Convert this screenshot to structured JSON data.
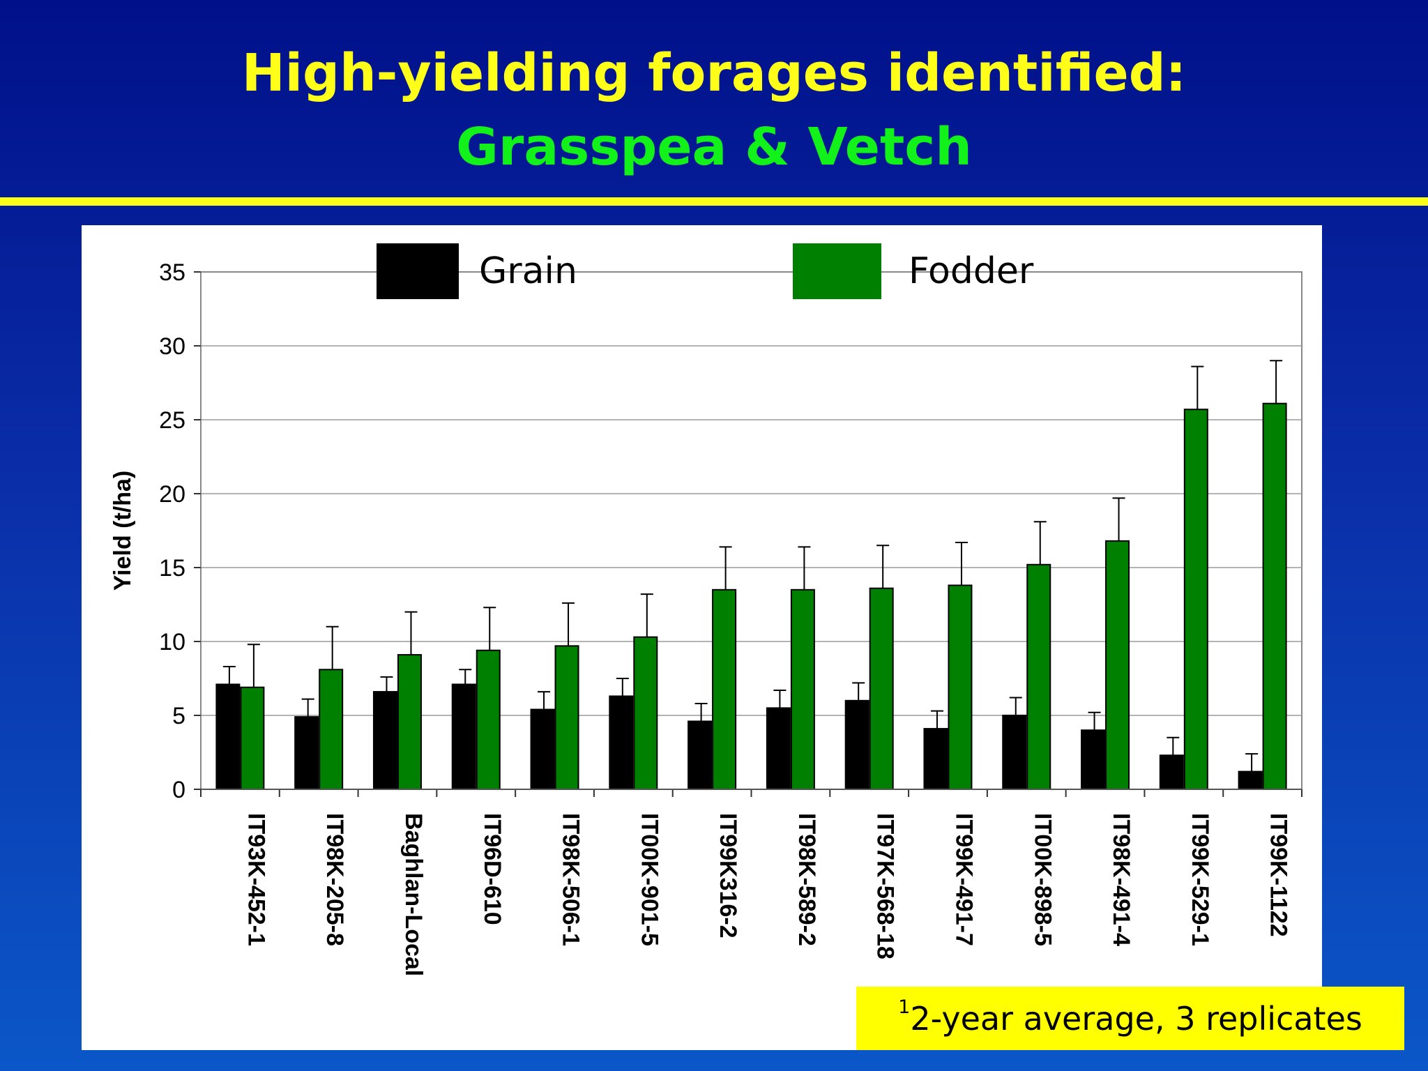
{
  "title": {
    "line1": "High-yielding forages identified:",
    "line2": "Grasspea & Vetch"
  },
  "footnote": {
    "marker": "1",
    "text": "2-year average, 3 replicates"
  },
  "colors": {
    "grain": "#000000",
    "fodder": "#008000",
    "title_yellow": "#ffff1a",
    "title_green": "#12f21a",
    "footnote_bg": "#ffff00"
  },
  "chart_data": {
    "type": "bar",
    "title": "",
    "xlabel": "",
    "ylabel": "Yield (t/ha)",
    "ylim": [
      0,
      35
    ],
    "yticks": [
      0,
      5,
      10,
      15,
      20,
      25,
      30,
      35
    ],
    "grid": true,
    "legend_position": "top",
    "categories": [
      "IT93K-452-1",
      "IT98K-205-8",
      "Baghlan-Local",
      "IT96D-610",
      "IT98K-506-1",
      "IT00K-901-5",
      "IT99K316-2",
      "IT98K-589-2",
      "IT97K-568-18",
      "IT99K-491-7",
      "IT00K-898-5",
      "IT98K-491-4",
      "IT99K-529-1",
      "IT99K-1122"
    ],
    "series": [
      {
        "name": "Grain",
        "color": "#000000",
        "values": [
          7.1,
          4.9,
          6.6,
          7.1,
          5.4,
          6.3,
          4.6,
          5.5,
          6.0,
          4.1,
          5.0,
          4.0,
          2.3,
          1.2
        ],
        "error": [
          1.2,
          1.2,
          1.0,
          1.0,
          1.2,
          1.2,
          1.2,
          1.2,
          1.2,
          1.2,
          1.2,
          1.2,
          1.2,
          1.2
        ]
      },
      {
        "name": "Fodder",
        "color": "#008000",
        "values": [
          6.9,
          8.1,
          9.1,
          9.4,
          9.7,
          10.3,
          13.5,
          13.5,
          13.6,
          13.8,
          15.2,
          16.8,
          25.7,
          26.1
        ],
        "error": [
          2.9,
          2.9,
          2.9,
          2.9,
          2.9,
          2.9,
          2.9,
          2.9,
          2.9,
          2.9,
          2.9,
          2.9,
          2.9,
          2.9
        ]
      }
    ]
  }
}
